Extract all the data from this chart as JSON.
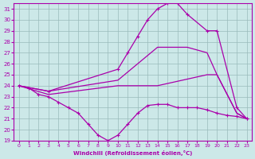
{
  "xlabel": "Windchill (Refroidissement éolien,°C)",
  "background_color": "#cce8e8",
  "line_color": "#aa00aa",
  "xlim": [
    -0.5,
    23.5
  ],
  "ylim": [
    19,
    31.5
  ],
  "yticks": [
    19,
    20,
    21,
    22,
    23,
    24,
    25,
    26,
    27,
    28,
    29,
    30,
    31
  ],
  "xticks": [
    0,
    1,
    2,
    3,
    4,
    5,
    6,
    7,
    8,
    9,
    10,
    11,
    12,
    13,
    14,
    15,
    16,
    17,
    18,
    19,
    20,
    21,
    22,
    23
  ],
  "lines": [
    {
      "x": [
        0,
        1,
        2,
        3,
        4,
        5,
        6,
        7,
        8,
        9,
        10,
        11,
        12,
        13,
        14,
        15,
        16,
        17,
        18,
        19,
        20,
        21,
        22,
        23
      ],
      "y": [
        24,
        23.8,
        23.2,
        23.0,
        22.5,
        22.0,
        21.5,
        20.5,
        19.5,
        19.0,
        19.5,
        20.5,
        21.5,
        22.2,
        22.3,
        22.3,
        22.0,
        22.0,
        22.0,
        21.8,
        21.5,
        21.3,
        21.2,
        21.0
      ],
      "marker": "+",
      "linewidth": 0.9
    },
    {
      "x": [
        0,
        3,
        10,
        14,
        17,
        19,
        20,
        22,
        23
      ],
      "y": [
        24,
        23.5,
        24.5,
        27.5,
        27.5,
        27.0,
        25.0,
        21.5,
        21.0
      ],
      "marker": null,
      "linewidth": 0.9
    },
    {
      "x": [
        0,
        3,
        10,
        11,
        12,
        13,
        14,
        15,
        16,
        17,
        19,
        20,
        22,
        23
      ],
      "y": [
        24,
        23.5,
        25.5,
        27.0,
        28.5,
        30.0,
        31.0,
        31.5,
        31.5,
        30.5,
        29.0,
        29.0,
        22.0,
        21.0
      ],
      "marker": "+",
      "linewidth": 0.9
    },
    {
      "x": [
        0,
        3,
        10,
        14,
        19,
        20,
        22,
        23
      ],
      "y": [
        24,
        23.2,
        24.0,
        24.0,
        25.0,
        25.0,
        21.5,
        21.0
      ],
      "marker": null,
      "linewidth": 0.9
    }
  ]
}
